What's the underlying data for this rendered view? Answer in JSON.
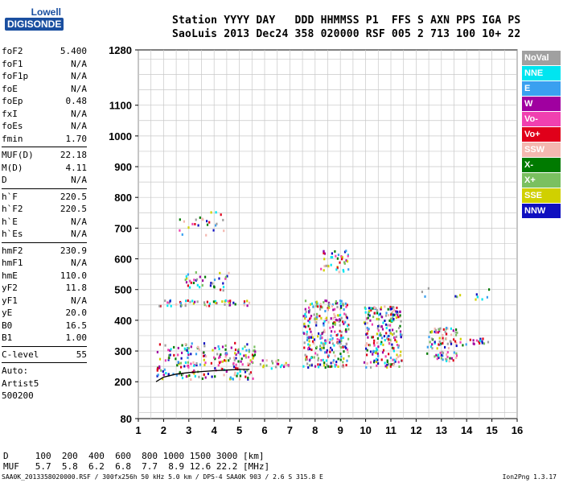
{
  "logo": {
    "line1": "Lowell",
    "line2": "DIGISONDE"
  },
  "header": {
    "line1": "Station YYYY DAY   DDD HHMMSS P1  FFS S AXN PPS IGA PS",
    "line2": "SaoLuis 2013 Dec24 358 020000 RSF 005 2 713 100 10+ 22"
  },
  "params": [
    {
      "name": "foF2",
      "value": "5.400"
    },
    {
      "name": "foF1",
      "value": "N/A"
    },
    {
      "name": "foF1p",
      "value": "N/A"
    },
    {
      "name": "foE",
      "value": "N/A"
    },
    {
      "name": "foEp",
      "value": "0.48"
    },
    {
      "name": "fxI",
      "value": "N/A"
    },
    {
      "name": "foEs",
      "value": "N/A"
    },
    {
      "name": "fmin",
      "value": "1.70"
    },
    {
      "sep": true
    },
    {
      "name": "MUF(D)",
      "value": "22.18"
    },
    {
      "name": "M(D)",
      "value": "4.11"
    },
    {
      "name": "D",
      "value": "N/A"
    },
    {
      "sep": true
    },
    {
      "name": "h`F",
      "value": "220.5"
    },
    {
      "name": "h`F2",
      "value": "220.5"
    },
    {
      "name": "h`E",
      "value": "N/A"
    },
    {
      "name": "h`Es",
      "value": "N/A"
    },
    {
      "sep": true
    },
    {
      "name": "hmF2",
      "value": "230.9"
    },
    {
      "name": "hmF1",
      "value": "N/A"
    },
    {
      "name": "hmE",
      "value": "110.0"
    },
    {
      "name": "yF2",
      "value": "11.8"
    },
    {
      "name": "yF1",
      "value": "N/A"
    },
    {
      "name": "yE",
      "value": "20.0"
    },
    {
      "name": "B0",
      "value": "16.5"
    },
    {
      "name": "B1",
      "value": "1.00"
    },
    {
      "sep": true
    },
    {
      "name": "C-level",
      "value": "55"
    },
    {
      "sep": true
    },
    {
      "free": "Auto:"
    },
    {
      "free": "Artist5"
    },
    {
      "free": "500200"
    }
  ],
  "legend": [
    {
      "label": "NoVal",
      "color": "#a0a0a0"
    },
    {
      "label": "NNE",
      "color": "#00e5f0"
    },
    {
      "label": "E",
      "color": "#3aa0f0"
    },
    {
      "label": "W",
      "color": "#a000a0"
    },
    {
      "label": "Vo-",
      "color": "#f040b0"
    },
    {
      "label": "Vo+",
      "color": "#e0001a"
    },
    {
      "label": "SSW",
      "color": "#f4b8b0"
    },
    {
      "label": "X-",
      "color": "#007a00"
    },
    {
      "label": "X+",
      "color": "#7ac060"
    },
    {
      "label": "SSE",
      "color": "#d0d000"
    },
    {
      "label": "NNW",
      "color": "#1010c0"
    }
  ],
  "bottom": {
    "line1": "D     100  200  400  600  800 1000 1500 3000 [km]",
    "line2": "MUF   5.7  5.8  6.2  6.8  7.7  8.9 12.6 22.2 [MHz]"
  },
  "footer": {
    "left": "SAA0K_2013358020000.RSF / 300fx256h 50 kHz 5.0 km / DPS-4 SAA0K 903 / 2.6 S 315.8 E",
    "right": "Ion2Png 1.3.17"
  },
  "chart_data": {
    "type": "scatter",
    "title": "",
    "xlabel": "",
    "ylabel": "",
    "xlim": [
      1,
      16
    ],
    "ylim": [
      80,
      1280
    ],
    "x_ticks": [
      1,
      2,
      3,
      4,
      5,
      6,
      7,
      8,
      9,
      10,
      11,
      12,
      13,
      14,
      15,
      16
    ],
    "y_ticks": [
      80,
      200,
      300,
      400,
      500,
      600,
      700,
      800,
      900,
      1000,
      1100,
      1280
    ],
    "grid": true,
    "regions": [
      {
        "x": [
          1.7,
          5.6
        ],
        "y": [
          210,
          330
        ],
        "density": 0.35
      },
      {
        "x": [
          1.8,
          5.6
        ],
        "y": [
          450,
          470
        ],
        "density": 0.5
      },
      {
        "x": [
          2.8,
          4.6
        ],
        "y": [
          500,
          560
        ],
        "density": 0.25
      },
      {
        "x": [
          2.5,
          4.4
        ],
        "y": [
          680,
          760
        ],
        "density": 0.12
      },
      {
        "x": [
          5.8,
          7.0
        ],
        "y": [
          245,
          275
        ],
        "density": 0.5
      },
      {
        "x": [
          7.5,
          9.3
        ],
        "y": [
          250,
          470
        ],
        "density": 0.55
      },
      {
        "x": [
          8.2,
          9.4
        ],
        "y": [
          560,
          640
        ],
        "density": 0.3
      },
      {
        "x": [
          9.9,
          11.4
        ],
        "y": [
          250,
          450
        ],
        "density": 0.55
      },
      {
        "x": [
          12.4,
          13.6
        ],
        "y": [
          270,
          380
        ],
        "density": 0.5
      },
      {
        "x": [
          13.7,
          14.9
        ],
        "y": [
          320,
          345
        ],
        "density": 0.45
      },
      {
        "x": [
          12.2,
          15.0
        ],
        "y": [
          470,
          510
        ],
        "density": 0.08
      }
    ],
    "trace": {
      "x": [
        1.7,
        2.0,
        2.5,
        3.0,
        3.5,
        4.0,
        4.5,
        5.0,
        5.4
      ],
      "y": [
        200,
        215,
        225,
        230,
        233,
        236,
        238,
        240,
        240
      ]
    }
  }
}
